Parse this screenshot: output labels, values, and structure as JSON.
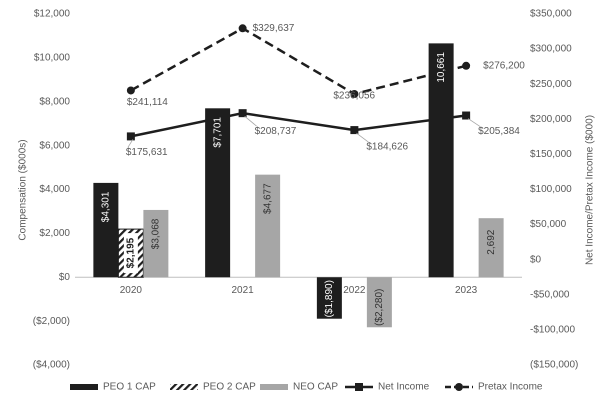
{
  "chart_data": {
    "type": "bar",
    "categories": [
      "2020",
      "2021",
      "2022",
      "2023"
    ],
    "y_label": "Compensation ($000s)",
    "y2_label": "Net Income/Pretax Income ($000)",
    "ylim": [
      -4000,
      12000
    ],
    "yticks": [
      {
        "value": -4000,
        "label": "($4,000)"
      },
      {
        "value": -2000,
        "label": "($2,000)"
      },
      {
        "value": 0,
        "label": "$0"
      },
      {
        "value": 2000,
        "label": "$2,000"
      },
      {
        "value": 4000,
        "label": "$4,000"
      },
      {
        "value": 6000,
        "label": "$6,000"
      },
      {
        "value": 8000,
        "label": "$8,000"
      },
      {
        "value": 10000,
        "label": "$10,000"
      },
      {
        "value": 12000,
        "label": "$12,000"
      }
    ],
    "y2lim": [
      -150000,
      350000
    ],
    "y2ticks": [
      {
        "value": -150000,
        "label": "($150,000)"
      },
      {
        "value": -100000,
        "label": "-$100,000"
      },
      {
        "value": -50000,
        "label": "-$50,000"
      },
      {
        "value": 0,
        "label": "$0"
      },
      {
        "value": 50000,
        "label": "$50,000"
      },
      {
        "value": 100000,
        "label": "$100,000"
      },
      {
        "value": 150000,
        "label": "$150,000"
      },
      {
        "value": 200000,
        "label": "$200,000"
      },
      {
        "value": 250000,
        "label": "$250,000"
      },
      {
        "value": 300000,
        "label": "$300,000"
      },
      {
        "value": 350000,
        "label": "$350,000"
      }
    ],
    "legend": "bottom",
    "series": [
      {
        "name": "PEO 1 CAP",
        "type": "bar",
        "color": "#1e1e1e",
        "values": [
          4301,
          7701,
          -1890,
          10661
        ],
        "value_labels": [
          "$4,301",
          "$7,701",
          "($1,890)",
          "10,661"
        ]
      },
      {
        "name": "PEO 2 CAP",
        "type": "bar",
        "color": "#1e1e1e",
        "pattern": "hatch",
        "values": [
          2195,
          null,
          null,
          null
        ],
        "value_labels": [
          "$2,195",
          null,
          null,
          null
        ]
      },
      {
        "name": "NEO CAP",
        "type": "bar",
        "color": "#a6a6a6",
        "values": [
          3068,
          4677,
          -2280,
          2692
        ],
        "value_labels": [
          "$3,068",
          "$4,677",
          "($2,280)",
          "2,692"
        ]
      },
      {
        "name": "Net Income",
        "type": "line",
        "axis": "y2",
        "color": "#1e1e1e",
        "marker": "square",
        "dash": false,
        "values": [
          175631,
          208737,
          184626,
          205384
        ],
        "value_labels": [
          "$175,631",
          "$208,737",
          "$184,626",
          "$205,384"
        ]
      },
      {
        "name": "Pretax Income",
        "type": "line",
        "axis": "y2",
        "color": "#1e1e1e",
        "marker": "circle",
        "dash": true,
        "values": [
          241114,
          329637,
          236056,
          276200
        ],
        "value_labels": [
          "$241,114",
          "$329,637",
          "$236,056",
          "$276,200"
        ]
      }
    ]
  }
}
